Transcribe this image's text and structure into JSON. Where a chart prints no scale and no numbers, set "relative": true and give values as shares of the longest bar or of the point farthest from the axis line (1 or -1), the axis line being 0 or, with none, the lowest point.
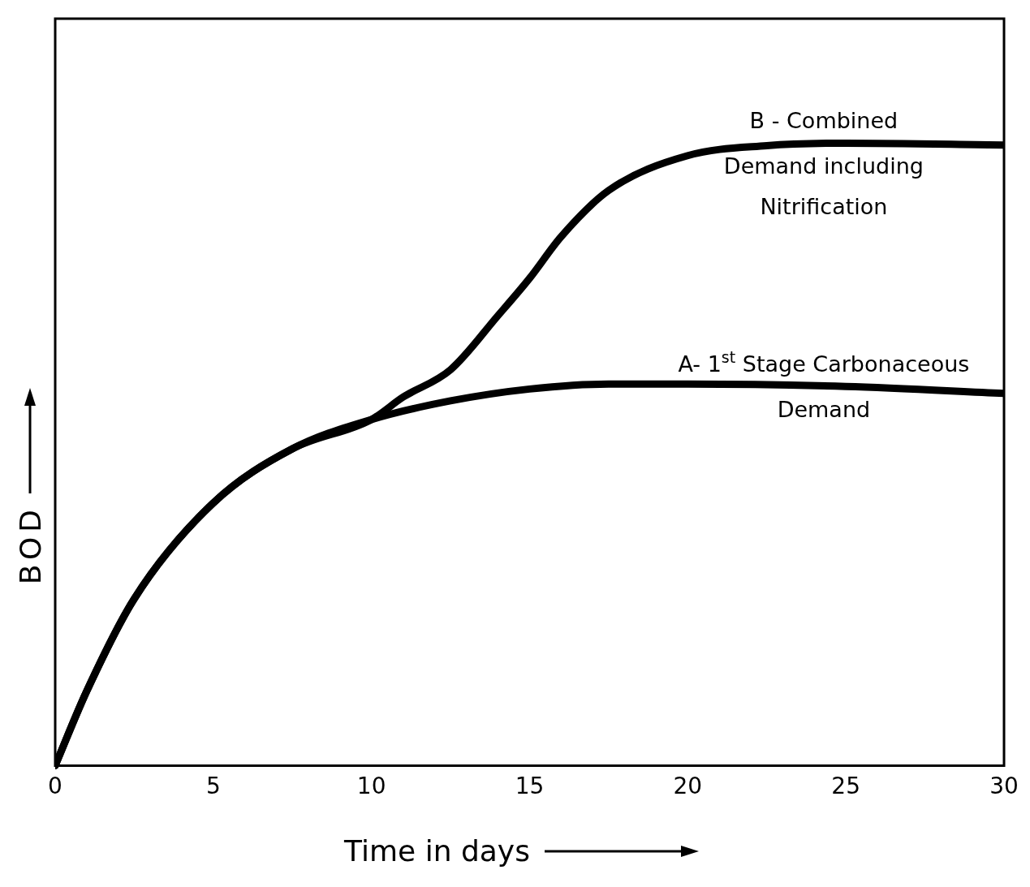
{
  "chart_data": {
    "type": "line",
    "relative": true,
    "xlabel": "Time in days",
    "ylabel": "BOD",
    "xlim": [
      0,
      30
    ],
    "xticks": [
      0,
      5,
      10,
      15,
      20,
      25,
      30
    ],
    "grid": false,
    "legend": false,
    "marker": "none",
    "line_style": "solid",
    "series": [
      {
        "name": "A- 1$^{st}$ Stage Carbonaceous\nDemand",
        "color": "#000000",
        "x": [
          0,
          1,
          2.5,
          5,
          7.5,
          10,
          12.5,
          15,
          17.5,
          20,
          25,
          30
        ],
        "values": [
          0,
          0.12,
          0.268,
          0.422,
          0.509,
          0.556,
          0.586,
          0.605,
          0.613,
          0.613,
          0.609,
          0.598
        ]
      },
      {
        "name": "B - Combined\nDemand including\nNitrification",
        "color": "#000000",
        "x": [
          0,
          1,
          2.5,
          5,
          7.5,
          10,
          11,
          12.5,
          14,
          15,
          16,
          17.5,
          20,
          22.5,
          25,
          30
        ],
        "values": [
          0,
          0.12,
          0.268,
          0.422,
          0.509,
          0.556,
          0.592,
          0.636,
          0.723,
          0.783,
          0.85,
          0.924,
          0.98,
          0.996,
          1,
          0.997
        ]
      }
    ]
  }
}
